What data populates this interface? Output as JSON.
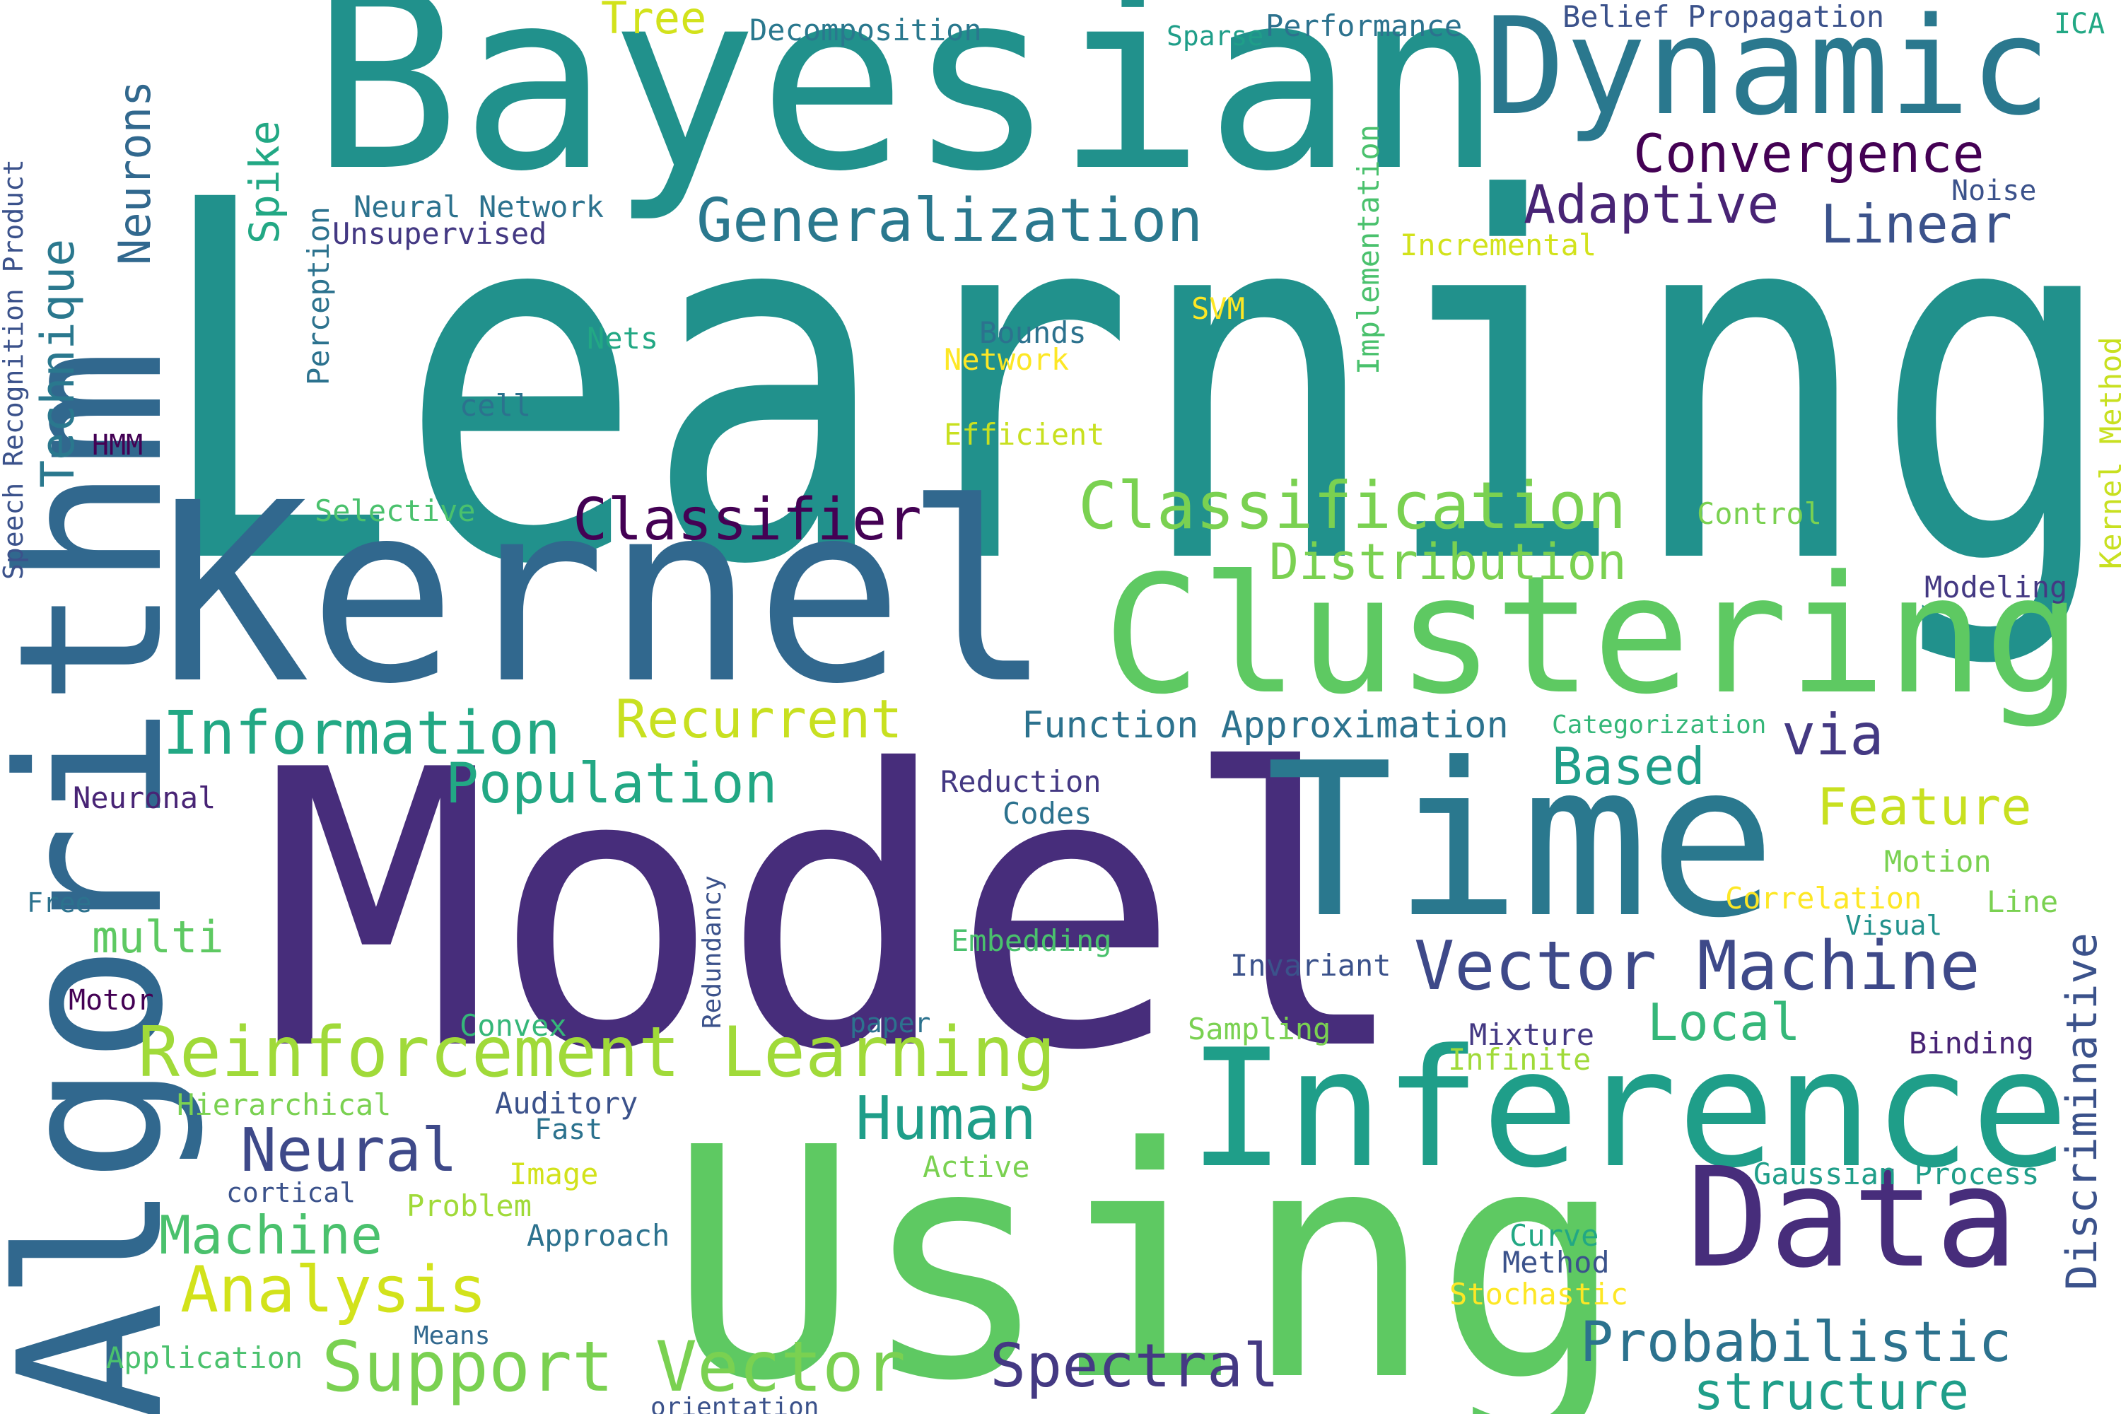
{
  "words": [
    {
      "text": "Learning",
      "color": "#21918c"
    },
    {
      "text": "Model",
      "color": "#472d7b"
    },
    {
      "text": "Kernel",
      "color": "#31688e"
    },
    {
      "text": "Using",
      "color": "#5ec962"
    },
    {
      "text": "Bayesian",
      "color": "#21918c"
    },
    {
      "text": "Algorithm",
      "color": "#31688e",
      "orientation": "vertical"
    },
    {
      "text": "Time",
      "color": "#2a788e"
    },
    {
      "text": "Clustering",
      "color": "#5ec962"
    },
    {
      "text": "Inference",
      "color": "#1f9e89"
    },
    {
      "text": "Dynamic",
      "color": "#2a788e"
    },
    {
      "text": "Data",
      "color": "#472d7b"
    },
    {
      "text": "Reinforcement Learning",
      "color": "#a0da39"
    },
    {
      "text": "Vector Machine",
      "color": "#3e4989"
    },
    {
      "text": "Support Vector",
      "color": "#7ad151"
    },
    {
      "text": "Classification",
      "color": "#7ad151"
    },
    {
      "text": "Generalization",
      "color": "#2a788e"
    },
    {
      "text": "Information",
      "color": "#22a884"
    },
    {
      "text": "Population",
      "color": "#22a884"
    },
    {
      "text": "Classifier",
      "color": "#440154"
    },
    {
      "text": "Distribution",
      "color": "#7ad151"
    },
    {
      "text": "Recurrent",
      "color": "#c8e020"
    },
    {
      "text": "Convergence",
      "color": "#440154"
    },
    {
      "text": "Adaptive",
      "color": "#482475"
    },
    {
      "text": "Linear",
      "color": "#3b528b"
    },
    {
      "text": "Analysis",
      "color": "#d2e21b"
    },
    {
      "text": "Machine",
      "color": "#4ac16d"
    },
    {
      "text": "Neural",
      "color": "#3e4989"
    },
    {
      "text": "Human",
      "color": "#1f9e89"
    },
    {
      "text": "Spectral",
      "color": "#443983"
    },
    {
      "text": "Probabilistic",
      "color": "#2c728e"
    },
    {
      "text": "structure",
      "color": "#1f9e89"
    },
    {
      "text": "Local",
      "color": "#35b779"
    },
    {
      "text": "Feature",
      "color": "#c8e020"
    },
    {
      "text": "Based",
      "color": "#1f9e89"
    },
    {
      "text": "via",
      "color": "#443983"
    },
    {
      "text": "multi",
      "color": "#5ec962"
    },
    {
      "text": "Function Approximation",
      "color": "#2c728e"
    },
    {
      "text": "Discriminative",
      "color": "#3b528b",
      "orientation": "vertical"
    },
    {
      "text": "Technique",
      "color": "#2a788e",
      "orientation": "vertical"
    },
    {
      "text": "Neurons",
      "color": "#31688e",
      "orientation": "vertical"
    },
    {
      "text": "Spike",
      "color": "#22a884",
      "orientation": "vertical"
    },
    {
      "text": "Tree",
      "color": "#d2e21b"
    },
    {
      "text": "Decomposition",
      "color": "#2a788e"
    },
    {
      "text": "Sparse",
      "color": "#1f9e89"
    },
    {
      "text": "Performance",
      "color": "#2c728e"
    },
    {
      "text": "Belief Propagation",
      "color": "#3b528b"
    },
    {
      "text": "ICA",
      "color": "#22a884"
    },
    {
      "text": "Noise",
      "color": "#3b528b"
    },
    {
      "text": "Neural Network",
      "color": "#2c728e"
    },
    {
      "text": "Unsupervised",
      "color": "#443983"
    },
    {
      "text": "Incremental",
      "color": "#d2e21b"
    },
    {
      "text": "Perception",
      "color": "#2c728e",
      "orientation": "vertical"
    },
    {
      "text": "Implementation",
      "color": "#4ac16d",
      "orientation": "vertical"
    },
    {
      "text": "Kernel Method",
      "color": "#c8e020",
      "orientation": "vertical"
    },
    {
      "text": "Speech Recognition Product",
      "color": "#3b528b",
      "orientation": "vertical",
      "note_color_end": "#7ad151"
    },
    {
      "text": "SVM",
      "color": "#fde725"
    },
    {
      "text": "Nets",
      "color": "#22a884"
    },
    {
      "text": "Bounds",
      "color": "#2c728e"
    },
    {
      "text": "Network",
      "color": "#fde725"
    },
    {
      "text": "cell",
      "color": "#2c728e"
    },
    {
      "text": "Efficient",
      "color": "#c8e020"
    },
    {
      "text": "HMM",
      "color": "#440154"
    },
    {
      "text": "Selective",
      "color": "#4ac16d"
    },
    {
      "text": "Control",
      "color": "#7ad151"
    },
    {
      "text": "Modeling",
      "color": "#443983"
    },
    {
      "text": "Categorization",
      "color": "#35b779"
    },
    {
      "text": "Neuronal",
      "color": "#482475"
    },
    {
      "text": "Reduction",
      "color": "#443983"
    },
    {
      "text": "Codes",
      "color": "#2c728e"
    },
    {
      "text": "Motion",
      "color": "#7ad151"
    },
    {
      "text": "Free",
      "color": "#2c728e"
    },
    {
      "text": "Redundancy",
      "color": "#3b528b",
      "orientation": "vertical"
    },
    {
      "text": "Correlation",
      "color": "#fde725"
    },
    {
      "text": "Line",
      "color": "#7ad151"
    },
    {
      "text": "Visual",
      "color": "#21918c"
    },
    {
      "text": "Embedding",
      "color": "#4ac16d"
    },
    {
      "text": "Invariant",
      "color": "#3b528b"
    },
    {
      "text": "Motor",
      "color": "#440154"
    },
    {
      "text": "Convex",
      "color": "#35b779"
    },
    {
      "text": "paper",
      "color": "#2c728e"
    },
    {
      "text": "Sampling",
      "color": "#7ad151"
    },
    {
      "text": "Mixture",
      "color": "#443983"
    },
    {
      "text": "Infinite",
      "color": "#a0da39"
    },
    {
      "text": "Binding",
      "color": "#482475"
    },
    {
      "text": "Hierarchical",
      "color": "#7ad151"
    },
    {
      "text": "Auditory",
      "color": "#3b528b"
    },
    {
      "text": "Fast",
      "color": "#2c728e"
    },
    {
      "text": "Image",
      "color": "#d2e21b"
    },
    {
      "text": "Active",
      "color": "#7ad151"
    },
    {
      "text": "Gaussian Process",
      "color": "#1f9e89"
    },
    {
      "text": "cortical",
      "color": "#3b528b"
    },
    {
      "text": "Problem",
      "color": "#a0da39"
    },
    {
      "text": "Approach",
      "color": "#2c728e"
    },
    {
      "text": "Curve",
      "color": "#22a884"
    },
    {
      "text": "Method",
      "color": "#3b528b"
    },
    {
      "text": "Stochastic",
      "color": "#fde725"
    },
    {
      "text": "Application",
      "color": "#4ac16d"
    },
    {
      "text": "Means",
      "color": "#31688e"
    },
    {
      "text": "orientation",
      "color": "#3b528b"
    }
  ]
}
